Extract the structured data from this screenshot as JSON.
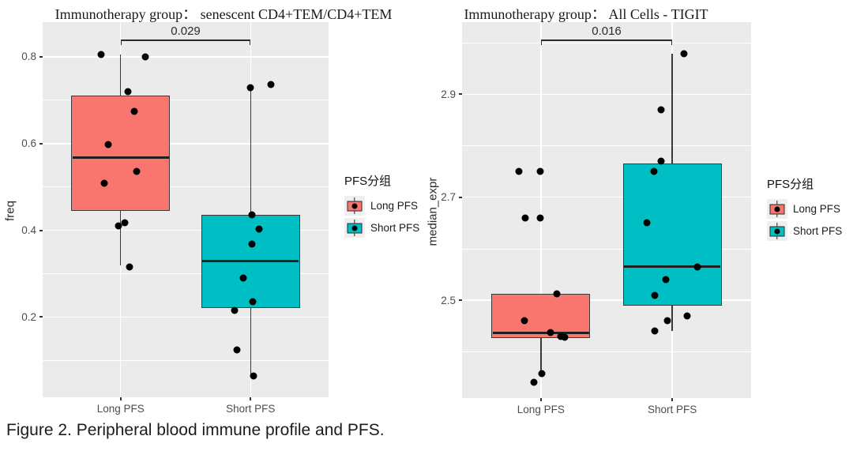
{
  "caption": "Figure 2. Peripheral blood immune profile and PFS.",
  "colors": {
    "long_pfs": "#F8766D",
    "short_pfs": "#00BFC4",
    "panel_background": "#EBEBEB",
    "gridline": "#FFFFFF",
    "box_border": "#3A3A3A",
    "point": "#000000",
    "axis_text": "#4D4D4D"
  },
  "icons": {
    "legend_key": "boxplot-glyph"
  },
  "chart_data": [
    {
      "type": "boxplot",
      "title": "Immunotherapy group： senescent CD4+TEM/CD4+TEM",
      "ylabel": "freq",
      "xlabel": "",
      "ylim": [
        0.015,
        0.88
      ],
      "yticks": [
        0.2,
        0.4,
        0.6,
        0.8
      ],
      "ytick_labels": [
        "0.2",
        "0.4",
        "0.6",
        "0.8"
      ],
      "categories": [
        "Long PFS",
        "Short PFS"
      ],
      "p_value": "0.029",
      "grid": "major-minor-white",
      "legend_position": "right",
      "series": [
        {
          "name": "Long PFS",
          "color": "#F8766D",
          "stats": {
            "min": 0.32,
            "q1": 0.445,
            "median": 0.568,
            "q3": 0.71,
            "max": 0.805
          },
          "points": [
            {
              "v": 0.805,
              "dx": -25
            },
            {
              "v": 0.8,
              "dx": 31
            },
            {
              "v": 0.72,
              "dx": 9
            },
            {
              "v": 0.675,
              "dx": 17
            },
            {
              "v": 0.598,
              "dx": -16
            },
            {
              "v": 0.535,
              "dx": 20
            },
            {
              "v": 0.508,
              "dx": -21
            },
            {
              "v": 0.417,
              "dx": 5
            },
            {
              "v": 0.411,
              "dx": -3
            },
            {
              "v": 0.315,
              "dx": 11
            }
          ]
        },
        {
          "name": "Short PFS",
          "color": "#00BFC4",
          "stats": {
            "min": 0.064,
            "q1": 0.22,
            "median": 0.33,
            "q3": 0.435,
            "max": 0.729
          },
          "points": [
            {
              "v": 0.737,
              "dx": 26
            },
            {
              "v": 0.729,
              "dx": 0
            },
            {
              "v": 0.435,
              "dx": 2
            },
            {
              "v": 0.403,
              "dx": 11
            },
            {
              "v": 0.368,
              "dx": 2
            },
            {
              "v": 0.29,
              "dx": -9
            },
            {
              "v": 0.236,
              "dx": 3
            },
            {
              "v": 0.215,
              "dx": -20
            },
            {
              "v": 0.125,
              "dx": -17
            },
            {
              "v": 0.064,
              "dx": 4
            }
          ]
        }
      ],
      "legend": {
        "title": "PFS分组",
        "items": [
          {
            "label": "Long PFS",
            "color": "#F8766D"
          },
          {
            "label": "Short PFS",
            "color": "#00BFC4"
          }
        ]
      }
    },
    {
      "type": "boxplot",
      "title": "Immunotherapy group： All Cells - TIGIT",
      "ylabel": "median_expr",
      "xlabel": "",
      "ylim": [
        2.31,
        3.04
      ],
      "yticks": [
        2.5,
        2.7,
        2.9
      ],
      "ytick_labels": [
        "2.5",
        "2.7",
        "2.9"
      ],
      "categories": [
        "Long PFS",
        "Short PFS"
      ],
      "p_value": "0.016",
      "grid": "major-minor-white",
      "legend_position": "right",
      "series": [
        {
          "name": "Long PFS",
          "color": "#F8766D",
          "stats": {
            "min": 2.355,
            "q1": 2.427,
            "median": 2.437,
            "q3": 2.512,
            "max": 2.512
          },
          "points": [
            {
              "v": 2.75,
              "dx": -28
            },
            {
              "v": 2.75,
              "dx": -1
            },
            {
              "v": 2.66,
              "dx": -20
            },
            {
              "v": 2.66,
              "dx": -1
            },
            {
              "v": 2.512,
              "dx": 20
            },
            {
              "v": 2.46,
              "dx": -21
            },
            {
              "v": 2.437,
              "dx": 12
            },
            {
              "v": 2.43,
              "dx": 25
            },
            {
              "v": 2.428,
              "dx": 30
            },
            {
              "v": 2.357,
              "dx": 1
            },
            {
              "v": 2.34,
              "dx": -9
            }
          ]
        },
        {
          "name": "Short PFS",
          "color": "#00BFC4",
          "stats": {
            "min": 2.44,
            "q1": 2.49,
            "median": 2.565,
            "q3": 2.765,
            "max": 2.978
          },
          "points": [
            {
              "v": 2.978,
              "dx": 15
            },
            {
              "v": 2.87,
              "dx": -14
            },
            {
              "v": 2.77,
              "dx": -14
            },
            {
              "v": 2.75,
              "dx": -23
            },
            {
              "v": 2.65,
              "dx": -32
            },
            {
              "v": 2.565,
              "dx": 32
            },
            {
              "v": 2.54,
              "dx": -8
            },
            {
              "v": 2.51,
              "dx": -22
            },
            {
              "v": 2.47,
              "dx": 19
            },
            {
              "v": 2.46,
              "dx": -6
            },
            {
              "v": 2.44,
              "dx": -22
            }
          ]
        }
      ],
      "legend": {
        "title": "PFS分组",
        "items": [
          {
            "label": "Long PFS",
            "color": "#F8766D"
          },
          {
            "label": "Short PFS",
            "color": "#00BFC4"
          }
        ]
      }
    }
  ]
}
